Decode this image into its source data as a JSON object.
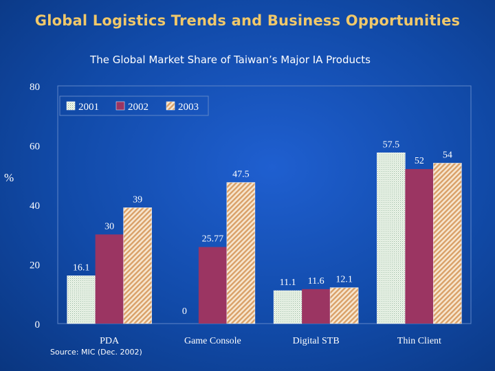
{
  "slide": {
    "title": "Global Logistics Trends and Business Opportunities",
    "source": "Source: MIC (Dec. 2002)"
  },
  "chart_data": {
    "type": "bar",
    "title": "The Global Market Share of Taiwan’s Major IA Products",
    "ylabel": "%",
    "xlabel": "",
    "ylim": [
      0,
      80
    ],
    "yticks": [
      0,
      20,
      40,
      60,
      80
    ],
    "grid": false,
    "legend_position": "top-left",
    "categories": [
      "PDA",
      "Game Console",
      "Digital STB",
      "Thin Client"
    ],
    "series": [
      {
        "name": "2001",
        "values": [
          16.1,
          0,
          11.1,
          57.5
        ],
        "labels": [
          "16.1",
          "0",
          "11.1",
          "57.5"
        ],
        "color": "#eef6ea",
        "pattern": "dots"
      },
      {
        "name": "2002",
        "values": [
          30,
          25.77,
          11.6,
          52
        ],
        "labels": [
          "30",
          "25.77",
          "11.6",
          "52"
        ],
        "color": "#9b3562",
        "pattern": "solid"
      },
      {
        "name": "2003",
        "values": [
          39,
          47.5,
          12.1,
          54
        ],
        "labels": [
          "39",
          "47.5",
          "12.1",
          "54"
        ],
        "color": "#e6b98a",
        "pattern": "diagonal"
      }
    ]
  }
}
